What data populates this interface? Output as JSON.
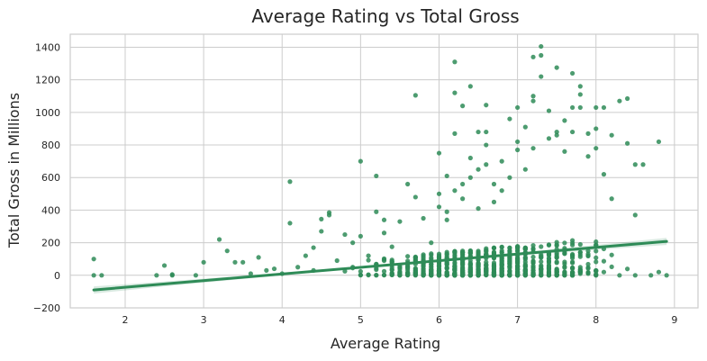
{
  "chart_data": {
    "type": "scatter",
    "title": "Average Rating vs Total Gross",
    "xlabel": "Average Rating",
    "ylabel": "Total Gross in Millions",
    "xlim": [
      1.3,
      9.3
    ],
    "ylim": [
      -200,
      1480
    ],
    "x_ticks": [
      2,
      3,
      4,
      5,
      6,
      7,
      8,
      9
    ],
    "y_ticks": [
      -200,
      0,
      200,
      400,
      600,
      800,
      1000,
      1200,
      1400
    ],
    "grid": true,
    "legend": "none",
    "colors": {
      "points": "#2e8b57",
      "line": "#2e8b57",
      "band": "#2e8b57",
      "grid": "#cccccc",
      "spine": "#cccccc"
    },
    "regression": {
      "x": [
        1.6,
        8.9
      ],
      "y": [
        -90,
        208
      ],
      "ci_halfwidth_ends": 22,
      "ci_halfwidth_center": 6
    },
    "points": [
      [
        1.6,
        100
      ],
      [
        1.6,
        0
      ],
      [
        1.7,
        0
      ],
      [
        2.4,
        0
      ],
      [
        2.5,
        60
      ],
      [
        2.6,
        5
      ],
      [
        2.6,
        0
      ],
      [
        2.9,
        0
      ],
      [
        3.0,
        80
      ],
      [
        3.2,
        220
      ],
      [
        3.3,
        150
      ],
      [
        3.4,
        80
      ],
      [
        3.5,
        80
      ],
      [
        3.6,
        10
      ],
      [
        3.7,
        110
      ],
      [
        3.8,
        30
      ],
      [
        3.9,
        40
      ],
      [
        4.0,
        10
      ],
      [
        4.1,
        575
      ],
      [
        4.1,
        320
      ],
      [
        4.2,
        50
      ],
      [
        4.3,
        120
      ],
      [
        4.4,
        170
      ],
      [
        4.4,
        30
      ],
      [
        4.5,
        345
      ],
      [
        4.5,
        270
      ],
      [
        4.6,
        370
      ],
      [
        4.6,
        385
      ],
      [
        4.7,
        90
      ],
      [
        4.8,
        250
      ],
      [
        4.9,
        200
      ],
      [
        4.9,
        50
      ],
      [
        5.0,
        700
      ],
      [
        5.0,
        240
      ],
      [
        5.1,
        120
      ],
      [
        5.2,
        610
      ],
      [
        5.2,
        390
      ],
      [
        5.3,
        340
      ],
      [
        5.3,
        260
      ],
      [
        5.4,
        175
      ],
      [
        5.5,
        330
      ],
      [
        5.6,
        560
      ],
      [
        5.7,
        1105
      ],
      [
        5.7,
        480
      ],
      [
        5.8,
        350
      ],
      [
        5.9,
        200
      ],
      [
        6.0,
        750
      ],
      [
        6.0,
        500
      ],
      [
        6.0,
        420
      ],
      [
        6.1,
        610
      ],
      [
        6.1,
        390
      ],
      [
        6.1,
        340
      ],
      [
        6.2,
        1310
      ],
      [
        6.2,
        1120
      ],
      [
        6.2,
        870
      ],
      [
        6.2,
        520
      ],
      [
        6.3,
        1040
      ],
      [
        6.3,
        560
      ],
      [
        6.3,
        470
      ],
      [
        6.4,
        1160
      ],
      [
        6.4,
        720
      ],
      [
        6.4,
        600
      ],
      [
        6.5,
        880
      ],
      [
        6.5,
        650
      ],
      [
        6.5,
        410
      ],
      [
        6.6,
        1045
      ],
      [
        6.6,
        880
      ],
      [
        6.6,
        800
      ],
      [
        6.6,
        680
      ],
      [
        6.7,
        560
      ],
      [
        6.7,
        450
      ],
      [
        6.8,
        700
      ],
      [
        6.8,
        520
      ],
      [
        6.9,
        960
      ],
      [
        6.9,
        600
      ],
      [
        7.0,
        1030
      ],
      [
        7.0,
        820
      ],
      [
        7.0,
        770
      ],
      [
        7.1,
        910
      ],
      [
        7.1,
        650
      ],
      [
        7.2,
        1340
      ],
      [
        7.2,
        1100
      ],
      [
        7.2,
        1070
      ],
      [
        7.2,
        780
      ],
      [
        7.3,
        1405
      ],
      [
        7.3,
        1350
      ],
      [
        7.3,
        1220
      ],
      [
        7.4,
        1010
      ],
      [
        7.4,
        840
      ],
      [
        7.5,
        1275
      ],
      [
        7.5,
        880
      ],
      [
        7.5,
        860
      ],
      [
        7.6,
        950
      ],
      [
        7.6,
        760
      ],
      [
        7.7,
        1240
      ],
      [
        7.7,
        1030
      ],
      [
        7.7,
        880
      ],
      [
        7.8,
        1160
      ],
      [
        7.8,
        1110
      ],
      [
        7.8,
        1030
      ],
      [
        7.9,
        870
      ],
      [
        7.9,
        730
      ],
      [
        8.0,
        1030
      ],
      [
        8.0,
        900
      ],
      [
        8.0,
        780
      ],
      [
        8.1,
        1030
      ],
      [
        8.1,
        620
      ],
      [
        8.2,
        860
      ],
      [
        8.2,
        470
      ],
      [
        8.3,
        1070
      ],
      [
        8.4,
        1085
      ],
      [
        8.4,
        810
      ],
      [
        8.5,
        680
      ],
      [
        8.5,
        370
      ],
      [
        8.6,
        680
      ],
      [
        8.8,
        820
      ],
      [
        8.9,
        0
      ],
      [
        8.7,
        0
      ],
      [
        8.8,
        20
      ]
    ]
  }
}
